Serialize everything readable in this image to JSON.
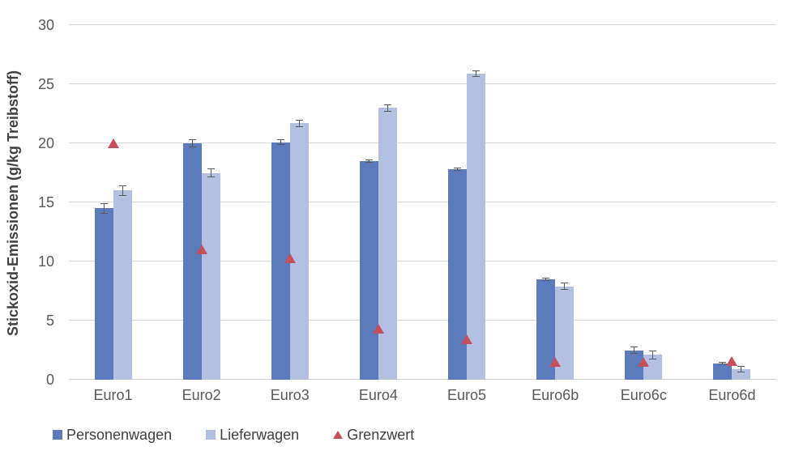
{
  "chart_data": {
    "type": "bar",
    "title": "",
    "xlabel": "",
    "ylabel": "Stickoxid-Emissionen (g/kg Treibstoff)",
    "ylim": [
      0,
      30
    ],
    "yticks": [
      0,
      5,
      10,
      15,
      20,
      25,
      30
    ],
    "grid": true,
    "legend_position": "bottom-left",
    "colors": {
      "gridline": "#d9d9d9",
      "axis_line": "#cfcfcf",
      "tick_text": "#595959",
      "title_text": "#404040",
      "error_bar": "#595959"
    },
    "categories": [
      "Euro1",
      "Euro2",
      "Euro3",
      "Euro4",
      "Euro5",
      "Euro6b",
      "Euro6c",
      "Euro6d"
    ],
    "series": [
      {
        "name": "Personenwagen",
        "type": "bar",
        "color": "#5b7bbd",
        "values": [
          14.5,
          20.0,
          20.1,
          18.5,
          17.8,
          8.5,
          2.5,
          1.4
        ],
        "errors": [
          0.45,
          0.35,
          0.25,
          0.12,
          0.15,
          0.15,
          0.3,
          0.1
        ]
      },
      {
        "name": "Lieferwagen",
        "type": "bar",
        "color": "#b3c0e2",
        "values": [
          16.0,
          17.5,
          21.7,
          23.0,
          25.9,
          7.9,
          2.1,
          0.9
        ],
        "errors": [
          0.45,
          0.35,
          0.3,
          0.3,
          0.25,
          0.3,
          0.4,
          0.25
        ]
      },
      {
        "name": "Grenzwert",
        "type": "scatter",
        "marker": "triangle",
        "color": "#c5505c",
        "values": [
          20,
          11,
          10.3,
          4.3,
          3.4,
          1.5,
          1.5,
          1.6
        ]
      }
    ]
  }
}
